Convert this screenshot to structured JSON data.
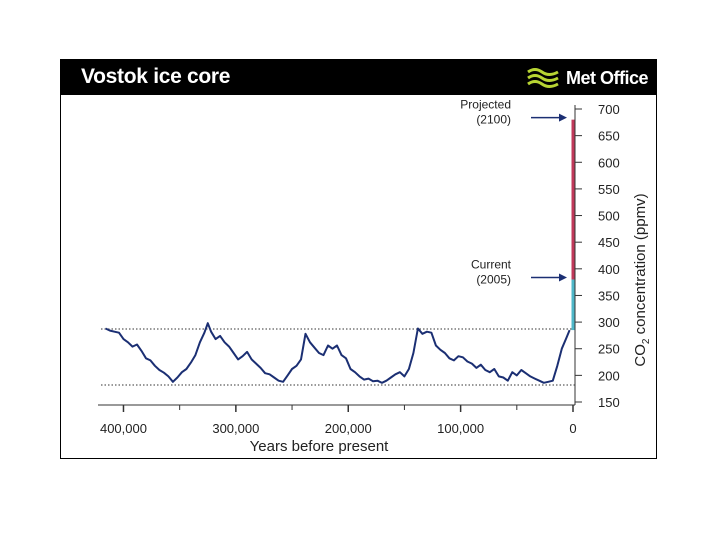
{
  "header": {
    "title": "Vostok ice core",
    "logo_text": "Met Office"
  },
  "colors": {
    "header_bg": "#000000",
    "series_line": "#1b2f73",
    "projected_bar": "#c0395a",
    "current_bar": "#4fb7c8",
    "logo_green": "#b7d433"
  },
  "chart_data": {
    "type": "line",
    "xlabel": "Years before present",
    "ylabel_main": "CO",
    "ylabel_sub": "2",
    "ylabel_rest": " concentration (ppmv)",
    "xlim": [
      420000,
      0
    ],
    "ylim": [
      150,
      700
    ],
    "x_ticks": [
      {
        "value": 400000,
        "label": "400,000"
      },
      {
        "value": 300000,
        "label": "300,000"
      },
      {
        "value": 200000,
        "label": "200,000"
      },
      {
        "value": 100000,
        "label": "100,000"
      },
      {
        "value": 0,
        "label": "0"
      }
    ],
    "x_minor_ticks": [
      350000,
      250000,
      150000,
      50000
    ],
    "y_ticks": [
      150,
      200,
      250,
      300,
      350,
      400,
      450,
      500,
      550,
      600,
      650,
      700
    ],
    "reference_lines": [
      287,
      182
    ],
    "series": [
      {
        "x": [
          416000,
          412000,
          408000,
          404000,
          400000,
          396000,
          392000,
          388000,
          384000,
          380000,
          376000,
          372000,
          368000,
          364000,
          360000,
          356000,
          352000,
          348000,
          344000,
          340000,
          336000,
          332000,
          328000,
          325000,
          322000,
          318000,
          314000,
          310000,
          306000,
          302000,
          298000,
          294000,
          290000,
          286000,
          282000,
          278000,
          274000,
          270000,
          266000,
          262000,
          258000,
          254000,
          250000,
          246000,
          242000,
          238000,
          234000,
          230000,
          226000,
          222000,
          218000,
          214000,
          210000,
          206000,
          202000,
          198000,
          194000,
          190000,
          186000,
          182000,
          178000,
          174000,
          170000,
          166000,
          162000,
          158000,
          154000,
          150000,
          146000,
          142000,
          138000,
          134000,
          130000,
          126000,
          122000,
          118000,
          114000,
          110000,
          106000,
          102000,
          98000,
          94000,
          90000,
          86000,
          82000,
          78000,
          74000,
          70000,
          66000,
          62000,
          58000,
          54000,
          50000,
          46000,
          42000,
          38000,
          34000,
          30000,
          26000,
          22000,
          18000,
          14000,
          10000,
          6000,
          3000
        ],
        "y": [
          288,
          284,
          282,
          280,
          268,
          262,
          254,
          258,
          246,
          232,
          228,
          218,
          210,
          205,
          198,
          188,
          196,
          206,
          212,
          224,
          238,
          262,
          280,
          298,
          282,
          268,
          274,
          262,
          254,
          242,
          230,
          236,
          244,
          230,
          222,
          214,
          204,
          202,
          196,
          190,
          188,
          200,
          212,
          218,
          230,
          278,
          262,
          252,
          242,
          238,
          256,
          250,
          256,
          238,
          232,
          212,
          206,
          198,
          192,
          194,
          189,
          190,
          186,
          190,
          196,
          202,
          206,
          198,
          212,
          242,
          288,
          278,
          282,
          280,
          256,
          248,
          242,
          232,
          228,
          236,
          234,
          226,
          222,
          214,
          220,
          210,
          206,
          212,
          198,
          196,
          190,
          206,
          200,
          210,
          204,
          198,
          194,
          190,
          186,
          188,
          190,
          218,
          250,
          270,
          285
        ]
      }
    ],
    "bars": [
      {
        "x": 0,
        "from": 285,
        "to": 380,
        "color_key": "current_bar"
      },
      {
        "x": 0,
        "from": 380,
        "to": 680,
        "color_key": "projected_bar"
      }
    ],
    "annotations": [
      {
        "line1": "Projected",
        "line2": "(2100)",
        "value": 680
      },
      {
        "line1": "Current",
        "line2": "(2005)",
        "value": 380
      }
    ]
  }
}
